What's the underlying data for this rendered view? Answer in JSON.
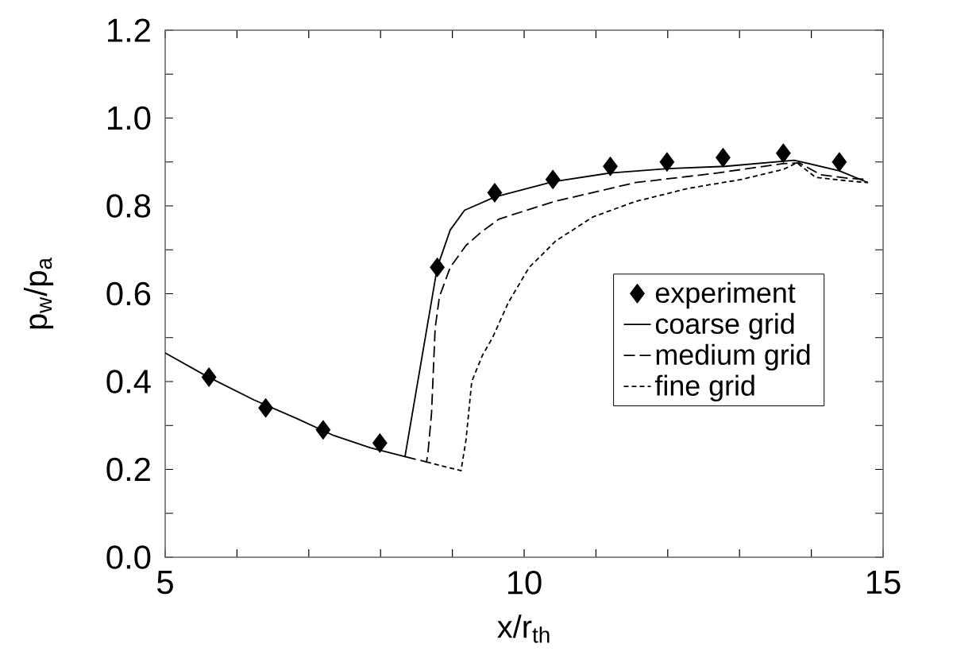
{
  "chart_data": {
    "type": "line",
    "xlabel": "x/r$_{th}$",
    "ylabel": "p$_{w}$/p$_{a}$",
    "xlim": [
      5,
      15
    ],
    "ylim": [
      0,
      1.2
    ],
    "xticks": [
      5,
      {
        "value": 6,
        "label": null
      },
      {
        "value": 7,
        "label": null
      },
      {
        "value": 8,
        "label": null
      },
      {
        "value": 9,
        "label": null
      },
      10,
      {
        "value": 11,
        "label": null
      },
      {
        "value": 12,
        "label": null
      },
      {
        "value": 13,
        "label": null
      },
      {
        "value": 14,
        "label": null
      },
      15
    ],
    "yticks": [
      {
        "value": 0,
        "label": "0.0"
      },
      {
        "value": 0.1,
        "label": null
      },
      {
        "value": 0.2,
        "label": "0.2"
      },
      {
        "value": 0.3,
        "label": null
      },
      {
        "value": 0.4,
        "label": "0.4"
      },
      {
        "value": 0.5,
        "label": null
      },
      {
        "value": 0.6,
        "label": "0.6"
      },
      {
        "value": 0.7,
        "label": null
      },
      {
        "value": 0.8,
        "label": "0.8"
      },
      {
        "value": 0.9,
        "label": null
      },
      {
        "value": 1.0,
        "label": "1.0"
      },
      {
        "value": 1.1,
        "label": null
      },
      {
        "value": 1.2,
        "label": "1.2"
      }
    ],
    "grid": false,
    "legend": "right",
    "series": [
      {
        "name": "experiment",
        "type": "scatter",
        "marker": "diamond",
        "color": "#000000",
        "x": [
          5.61,
          6.4,
          7.2,
          7.99,
          8.79,
          9.59,
          10.4,
          11.2,
          11.99,
          12.77,
          13.61,
          14.39
        ],
        "values": [
          0.41,
          0.34,
          0.29,
          0.26,
          0.66,
          0.83,
          0.86,
          0.89,
          0.9,
          0.91,
          0.92,
          0.9
        ]
      },
      {
        "name": "coarse grid",
        "type": "line",
        "line_style": "solid",
        "color": "#000000",
        "x": [
          5,
          5.58,
          6.24,
          6.83,
          7.35,
          7.86,
          8.34,
          8.79,
          8.97,
          9.17,
          9.59,
          10.4,
          11.2,
          12,
          12.8,
          13.76,
          14.39,
          14.79
        ],
        "values": [
          0.465,
          0.412,
          0.358,
          0.316,
          0.277,
          0.249,
          0.229,
          0.66,
          0.745,
          0.79,
          0.82,
          0.855,
          0.875,
          0.885,
          0.89,
          0.904,
          0.88,
          0.853
        ]
      },
      {
        "name": "medium grid",
        "type": "line",
        "line_style": "dashed",
        "color": "#000000",
        "x": [
          8.34,
          8.64,
          8.66,
          8.71,
          8.76,
          8.82,
          8.97,
          9.19,
          9.4,
          9.65,
          10.42,
          11.55,
          12.65,
          13.6,
          13.83,
          14.13,
          14.5,
          14.79
        ],
        "values": [
          0.229,
          0.217,
          0.237,
          0.328,
          0.521,
          0.593,
          0.66,
          0.71,
          0.74,
          0.77,
          0.81,
          0.853,
          0.874,
          0.896,
          0.898,
          0.871,
          0.863,
          0.86
        ]
      },
      {
        "name": "fine grid",
        "type": "line",
        "line_style": "dotted",
        "color": "#000000",
        "x": [
          8.64,
          9.12,
          9.19,
          9.27,
          9.42,
          9.56,
          9.78,
          10.07,
          10.44,
          10.96,
          11.55,
          12.29,
          13.02,
          13.61,
          13.8,
          14.06,
          14.5,
          14.79
        ],
        "values": [
          0.217,
          0.197,
          0.267,
          0.4,
          0.46,
          0.5,
          0.58,
          0.66,
          0.72,
          0.775,
          0.81,
          0.84,
          0.86,
          0.883,
          0.898,
          0.865,
          0.857,
          0.853
        ]
      }
    ]
  }
}
